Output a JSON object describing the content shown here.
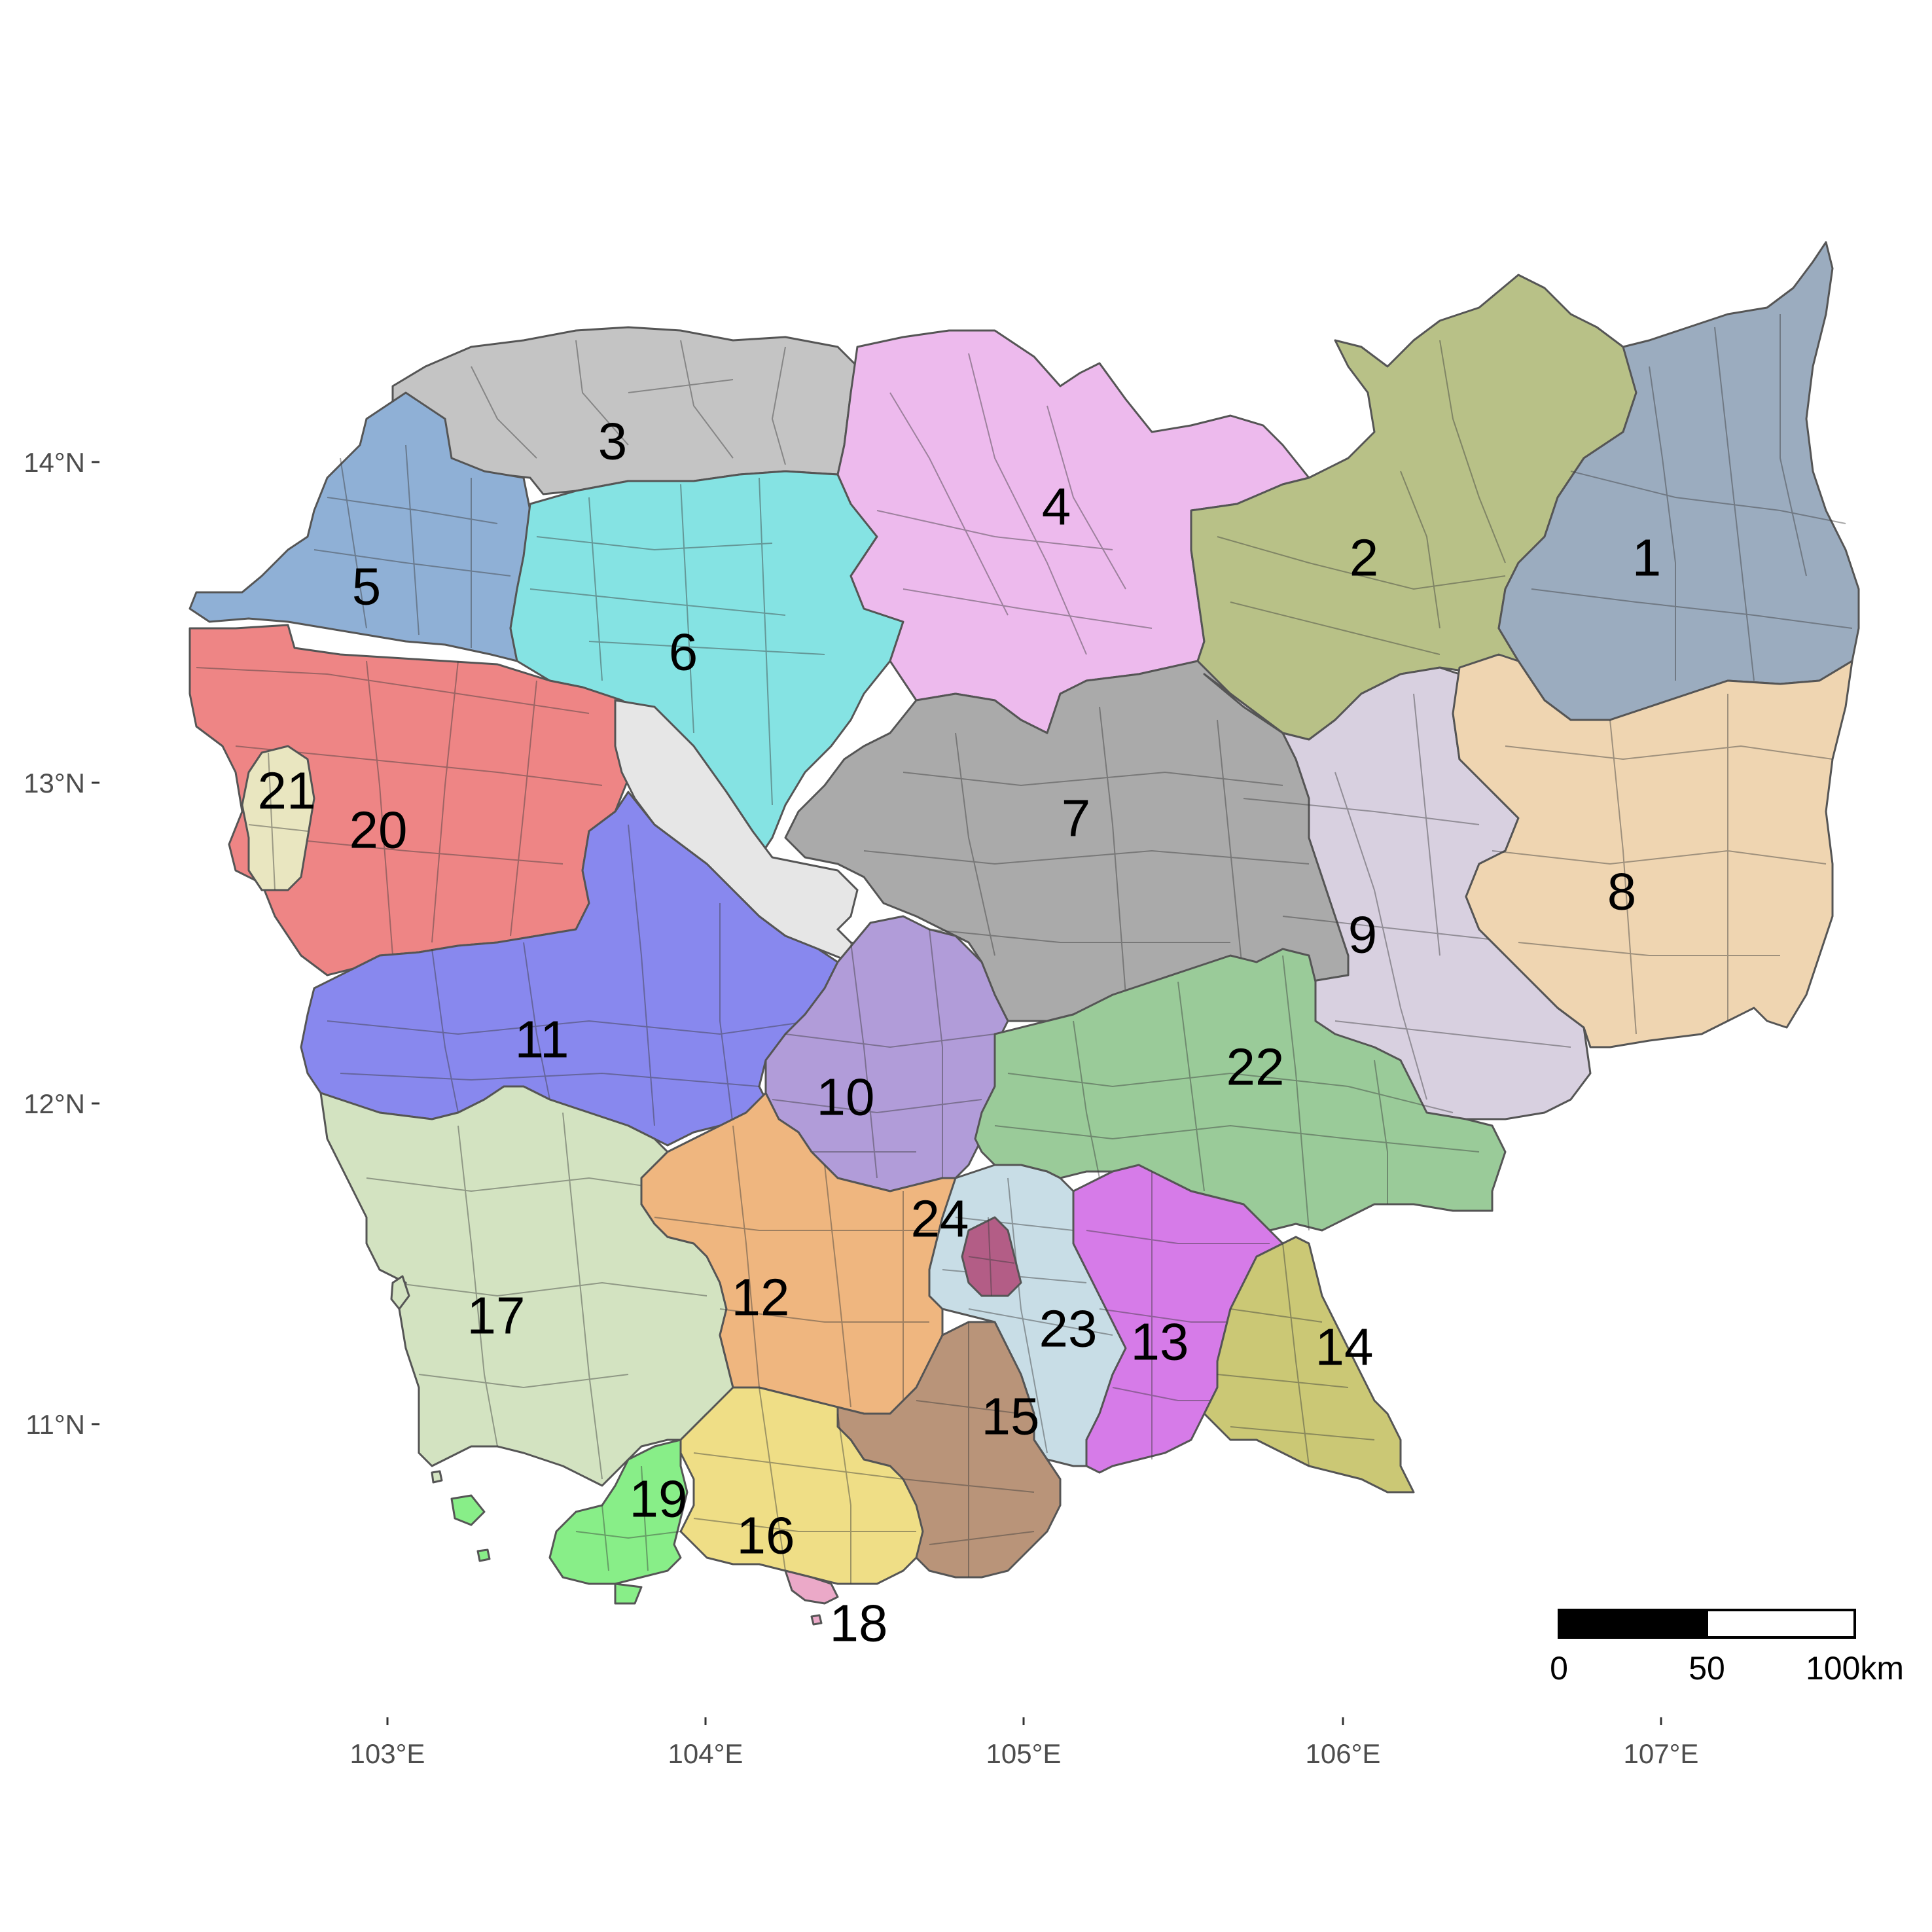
{
  "regions": [
    {
      "label": "1",
      "color": "#9bacbf"
    },
    {
      "label": "2",
      "color": "#b8c187"
    },
    {
      "label": "3",
      "color": "#c4c4c4"
    },
    {
      "label": "4",
      "color": "#edbaed"
    },
    {
      "label": "5",
      "color": "#8fb0d6"
    },
    {
      "label": "6",
      "color": "#85e3e3"
    },
    {
      "label": "7",
      "color": "#aaaaaa"
    },
    {
      "label": "8",
      "color": "#efd5b1"
    },
    {
      "label": "9",
      "color": "#d8d0e0"
    },
    {
      "label": "10",
      "color": "#b19cd9"
    },
    {
      "label": "11",
      "color": "#8888ee"
    },
    {
      "label": "12",
      "color": "#efb67f"
    },
    {
      "label": "13",
      "color": "#d67be8"
    },
    {
      "label": "14",
      "color": "#cbc875"
    },
    {
      "label": "15",
      "color": "#b99479"
    },
    {
      "label": "16",
      "color": "#efde86"
    },
    {
      "label": "17",
      "color": "#d3e3c1"
    },
    {
      "label": "18",
      "color": "#eba9c8"
    },
    {
      "label": "19",
      "color": "#88ee88"
    },
    {
      "label": "20",
      "color": "#ee8585"
    },
    {
      "label": "21",
      "color": "#e9e6c0"
    },
    {
      "label": "22",
      "color": "#9acb99"
    },
    {
      "label": "23",
      "color": "#c8dde6"
    },
    {
      "label": "24",
      "color": "#b35d86"
    }
  ],
  "lake_color": "#e6e6e6",
  "axes": {
    "latitude_labels": [
      "14°N",
      "13°N",
      "12°N",
      "11°N"
    ],
    "longitude_labels": [
      "103°E",
      "104°E",
      "105°E",
      "106°E",
      "107°E"
    ]
  },
  "scale_bar": {
    "labels": [
      "0",
      "50",
      "100km"
    ]
  }
}
